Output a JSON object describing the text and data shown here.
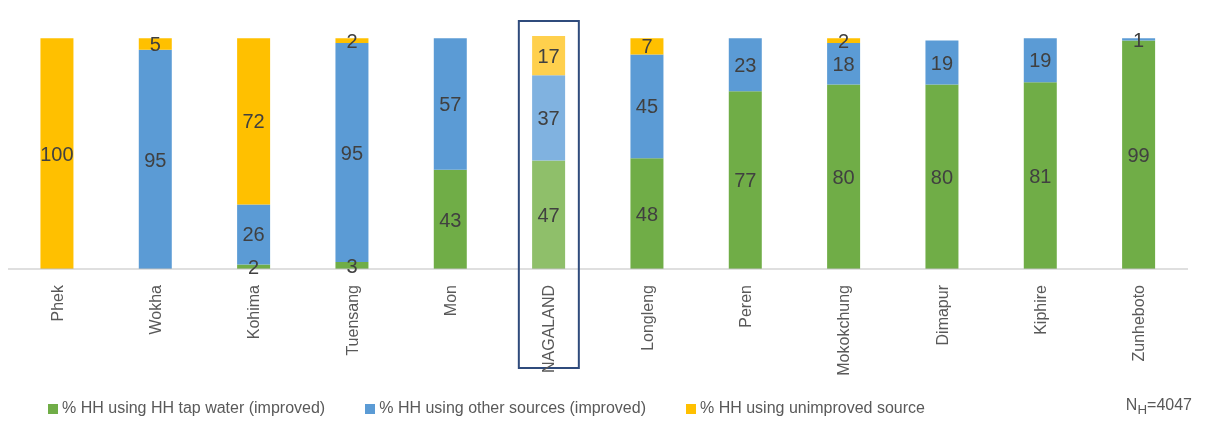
{
  "chart_data": {
    "type": "bar",
    "stacked": true,
    "data_labels": true,
    "legend": "bottom",
    "categories": [
      "Phek",
      "Wokha",
      "Kohima",
      "Tuensang",
      "Mon",
      "NAGALAND",
      "Longleng",
      "Peren",
      "Mokokchung",
      "Dimapur",
      "Kiphire",
      "Zunheboto"
    ],
    "series": [
      {
        "name": "% HH using HH tap water (improved)",
        "color": "#70ad47",
        "colors": [
          "#70ad47",
          "#70ad47",
          "#70ad47",
          "#70ad47",
          "#70ad47",
          "#8fbf6a",
          "#70ad47",
          "#70ad47",
          "#70ad47",
          "#70ad47",
          "#70ad47",
          "#70ad47"
        ],
        "values": [
          null,
          null,
          2,
          3,
          43,
          47,
          48,
          77,
          80,
          80,
          81,
          99
        ]
      },
      {
        "name": "% HH using other sources (improved)",
        "color": "#5b9bd5",
        "colors": [
          "#5b9bd5",
          "#5b9bd5",
          "#5b9bd5",
          "#5b9bd5",
          "#5b9bd5",
          "#80b2e0",
          "#5b9bd5",
          "#5b9bd5",
          "#5b9bd5",
          "#5b9bd5",
          "#5b9bd5",
          "#5b9bd5"
        ],
        "values": [
          null,
          95,
          26,
          95,
          57,
          37,
          45,
          23,
          18,
          19,
          19,
          1
        ]
      },
      {
        "name": "% HH using unimproved source",
        "color": "#ffc000",
        "colors": [
          "#ffc000",
          "#ffc000",
          "#ffc000",
          "#ffc000",
          "#ffc000",
          "#ffd04d",
          "#ffc000",
          "#ffc000",
          "#ffc000",
          "#ffc000",
          "#ffc000",
          "#ffc000"
        ],
        "values": [
          100,
          5,
          72,
          2,
          null,
          17,
          7,
          null,
          2,
          null,
          null,
          null
        ]
      }
    ],
    "annotations": [
      "N$_{H}$=4047"
    ]
  }
}
